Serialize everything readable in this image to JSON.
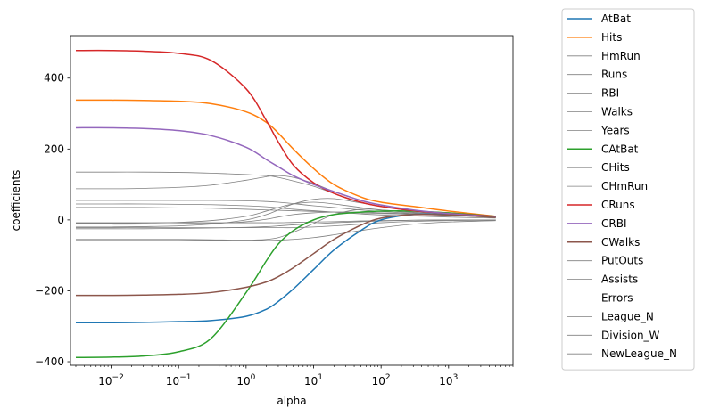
{
  "chart_data": {
    "type": "line",
    "title": "",
    "xlabel": "alpha",
    "ylabel": "coefficients",
    "xscale": "log",
    "xlim": [
      0.0025,
      9000
    ],
    "ylim": [
      -410,
      520
    ],
    "x_tick_values": [
      0.01,
      0.1,
      1,
      10,
      100,
      1000
    ],
    "x_tick_labels": [
      {
        "base": "10",
        "exp": "−2"
      },
      {
        "base": "10",
        "exp": "−1"
      },
      {
        "base": "10",
        "exp": "0"
      },
      {
        "base": "10",
        "exp": "1"
      },
      {
        "base": "10",
        "exp": "2"
      },
      {
        "base": "10",
        "exp": "3"
      }
    ],
    "y_ticks": [
      -400,
      -200,
      0,
      200,
      400
    ],
    "y_tick_labels": [
      "−400",
      "−200",
      "0",
      "200",
      "400"
    ],
    "grid": false,
    "legend_position": "outside-right",
    "x": [
      0.003,
      0.01,
      0.03,
      0.1,
      0.3,
      1,
      2,
      3,
      5,
      10,
      20,
      50,
      100,
      300,
      1000,
      5000
    ],
    "series": [
      {
        "name": "AtBat",
        "color": "#1f77b4",
        "width": 1.5,
        "values": [
          -290,
          -290,
          -289,
          -287,
          -284,
          -272,
          -252,
          -230,
          -195,
          -140,
          -85,
          -30,
          0,
          15,
          15,
          8
        ]
      },
      {
        "name": "Hits",
        "color": "#ff7f0e",
        "width": 1.5,
        "values": [
          338,
          338,
          337,
          335,
          328,
          305,
          275,
          245,
          200,
          145,
          100,
          65,
          50,
          38,
          25,
          10
        ]
      },
      {
        "name": "HmRun",
        "color": "#808080",
        "width": 0.8,
        "values": [
          35,
          35,
          35,
          34,
          33,
          30,
          28,
          27,
          26,
          24,
          22,
          20,
          18,
          16,
          13,
          8
        ]
      },
      {
        "name": "Runs",
        "color": "#808080",
        "width": 0.8,
        "values": [
          -12,
          -12,
          -12,
          -11,
          -10,
          -5,
          2,
          8,
          15,
          20,
          22,
          22,
          20,
          17,
          14,
          8
        ]
      },
      {
        "name": "RBI",
        "color": "#808080",
        "width": 0.8,
        "values": [
          -10,
          -10,
          -9,
          -7,
          -2,
          10,
          25,
          35,
          45,
          50,
          45,
          35,
          28,
          20,
          15,
          8
        ]
      },
      {
        "name": "Walks",
        "color": "#808080",
        "width": 0.8,
        "values": [
          135,
          135,
          135,
          134,
          132,
          128,
          125,
          120,
          110,
          95,
          75,
          50,
          38,
          25,
          17,
          9
        ]
      },
      {
        "name": "Years",
        "color": "#808080",
        "width": 0.8,
        "values": [
          -55,
          -55,
          -55,
          -55,
          -56,
          -57,
          -55,
          -50,
          -35,
          -10,
          15,
          30,
          28,
          22,
          15,
          7
        ]
      },
      {
        "name": "CAtBat",
        "color": "#2ca02c",
        "width": 1.5,
        "values": [
          -388,
          -387,
          -384,
          -372,
          -335,
          -205,
          -115,
          -68,
          -30,
          0,
          15,
          22,
          25,
          25,
          20,
          10
        ]
      },
      {
        "name": "CHits",
        "color": "#808080",
        "width": 0.8,
        "values": [
          88,
          88,
          89,
          92,
          98,
          112,
          122,
          125,
          120,
          103,
          80,
          55,
          42,
          28,
          18,
          9
        ]
      },
      {
        "name": "CHmRun",
        "color": "#808080",
        "width": 0.8,
        "values": [
          -20,
          -20,
          -19,
          -17,
          -12,
          0,
          15,
          28,
          45,
          58,
          60,
          48,
          38,
          26,
          17,
          9
        ]
      },
      {
        "name": "CRuns",
        "color": "#d62728",
        "width": 1.5,
        "values": [
          478,
          478,
          476,
          470,
          450,
          370,
          280,
          220,
          155,
          105,
          75,
          50,
          38,
          26,
          18,
          10
        ]
      },
      {
        "name": "CRBI",
        "color": "#9467bd",
        "width": 1.5,
        "values": [
          260,
          260,
          258,
          252,
          238,
          205,
          170,
          150,
          125,
          100,
          80,
          55,
          42,
          28,
          18,
          9
        ]
      },
      {
        "name": "CWalks",
        "color": "#8c564b",
        "width": 1.5,
        "values": [
          -213,
          -213,
          -212,
          -210,
          -205,
          -190,
          -175,
          -160,
          -135,
          -95,
          -55,
          -15,
          5,
          15,
          14,
          7
        ]
      },
      {
        "name": "PutOuts",
        "color": "#808080",
        "width": 0.8,
        "values": [
          55,
          55,
          55,
          55,
          55,
          54,
          52,
          50,
          46,
          40,
          35,
          28,
          24,
          18,
          13,
          7
        ]
      },
      {
        "name": "Assists",
        "color": "#808080",
        "width": 0.8,
        "values": [
          45,
          45,
          45,
          44,
          43,
          40,
          37,
          34,
          30,
          26,
          22,
          17,
          14,
          11,
          8,
          5
        ]
      },
      {
        "name": "Errors",
        "color": "#808080",
        "width": 0.8,
        "values": [
          -25,
          -25,
          -25,
          -24,
          -23,
          -21,
          -19,
          -17,
          -14,
          -11,
          -8,
          -5,
          -3,
          -1,
          0,
          0
        ]
      },
      {
        "name": "League_N",
        "color": "#808080",
        "width": 0.8,
        "values": [
          -22,
          -22,
          -22,
          -22,
          -22,
          -22,
          -22,
          -22,
          -22,
          -20,
          -17,
          -12,
          -8,
          -4,
          -2,
          -1
        ]
      },
      {
        "name": "Division_W",
        "color": "#808080",
        "width": 0.8,
        "values": [
          -58,
          -58,
          -58,
          -58,
          -58,
          -58,
          -58,
          -57,
          -55,
          -50,
          -42,
          -30,
          -22,
          -12,
          -6,
          -2
        ]
      },
      {
        "name": "NewLeague_N",
        "color": "#808080",
        "width": 0.8,
        "values": [
          -8,
          -8,
          -8,
          -8,
          -8,
          -8,
          -8,
          -8,
          -7,
          -6,
          -5,
          -3,
          -2,
          -1,
          0,
          0
        ]
      }
    ]
  }
}
